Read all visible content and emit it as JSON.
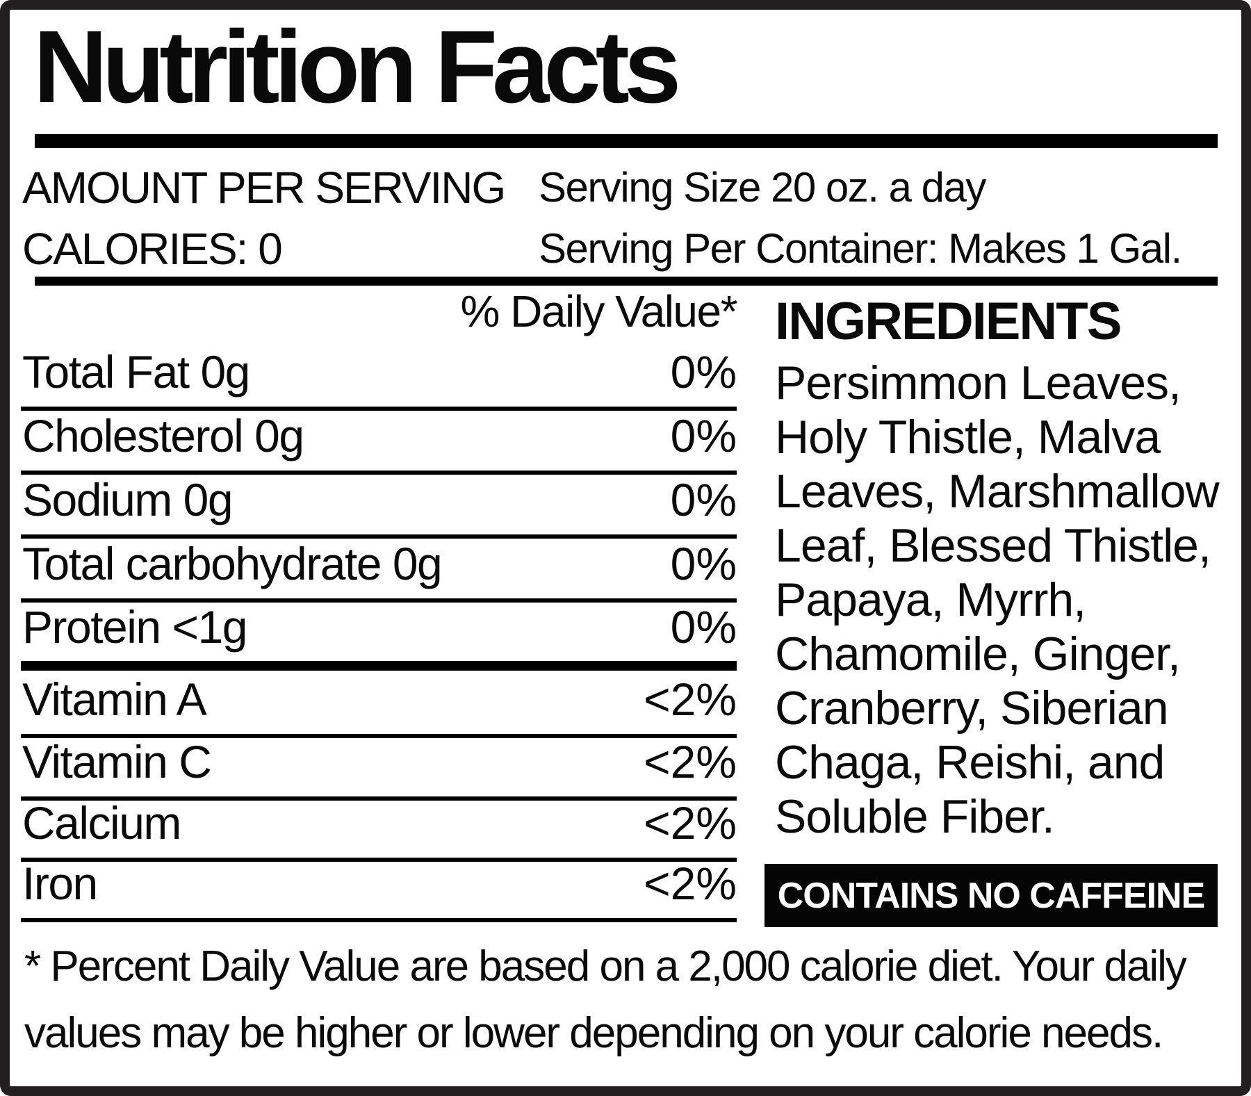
{
  "title": "Nutrition Facts",
  "serving": {
    "amount_label": "AMOUNT PER SERVING",
    "calories_label": "CALORIES: 0",
    "serving_size": "Serving Size 20 oz. a day",
    "servings_per_container": "Serving Per Container: Makes 1 Gal."
  },
  "daily_value_header": "% Daily Value*",
  "nutrients": [
    {
      "label": "Total Fat 0g",
      "value": "0%"
    },
    {
      "label": "Cholesterol 0g",
      "value": "0%"
    },
    {
      "label": "Sodium 0g",
      "value": "0%"
    },
    {
      "label": "Total carbohydrate 0g",
      "value": "0%"
    },
    {
      "label": "Protein <1g",
      "value": "0%"
    },
    {
      "label": "Vitamin A",
      "value": "<2%"
    },
    {
      "label": "Vitamin C",
      "value": "<2%"
    },
    {
      "label": "Calcium",
      "value": "<2%"
    },
    {
      "label": "Iron",
      "value": "<2%"
    }
  ],
  "ingredients": {
    "heading": "INGREDIENTS",
    "lines": [
      "Persimmon Leaves,",
      "Holy Thistle, Malva",
      "Leaves, Marshmallow",
      "Leaf, Blessed Thistle,",
      "Papaya, Myrrh,",
      "Chamomile, Ginger,",
      "Cranberry, Siberian",
      "Chaga, Reishi, and",
      "Soluble Fiber."
    ]
  },
  "caffeine_notice": "CONTAINS NO CAFFEINE",
  "footnote_lines": [
    "* Percent Daily Value are based on a 2,000 calorie diet. Your daily",
    "values may be higher or lower depending on your calorie needs."
  ],
  "colors": {
    "text": "#0a0a0a",
    "border": "#231f20",
    "rule": "#000000",
    "box_bg": "#050505",
    "box_text": "#ffffff",
    "background": "#ffffff"
  }
}
